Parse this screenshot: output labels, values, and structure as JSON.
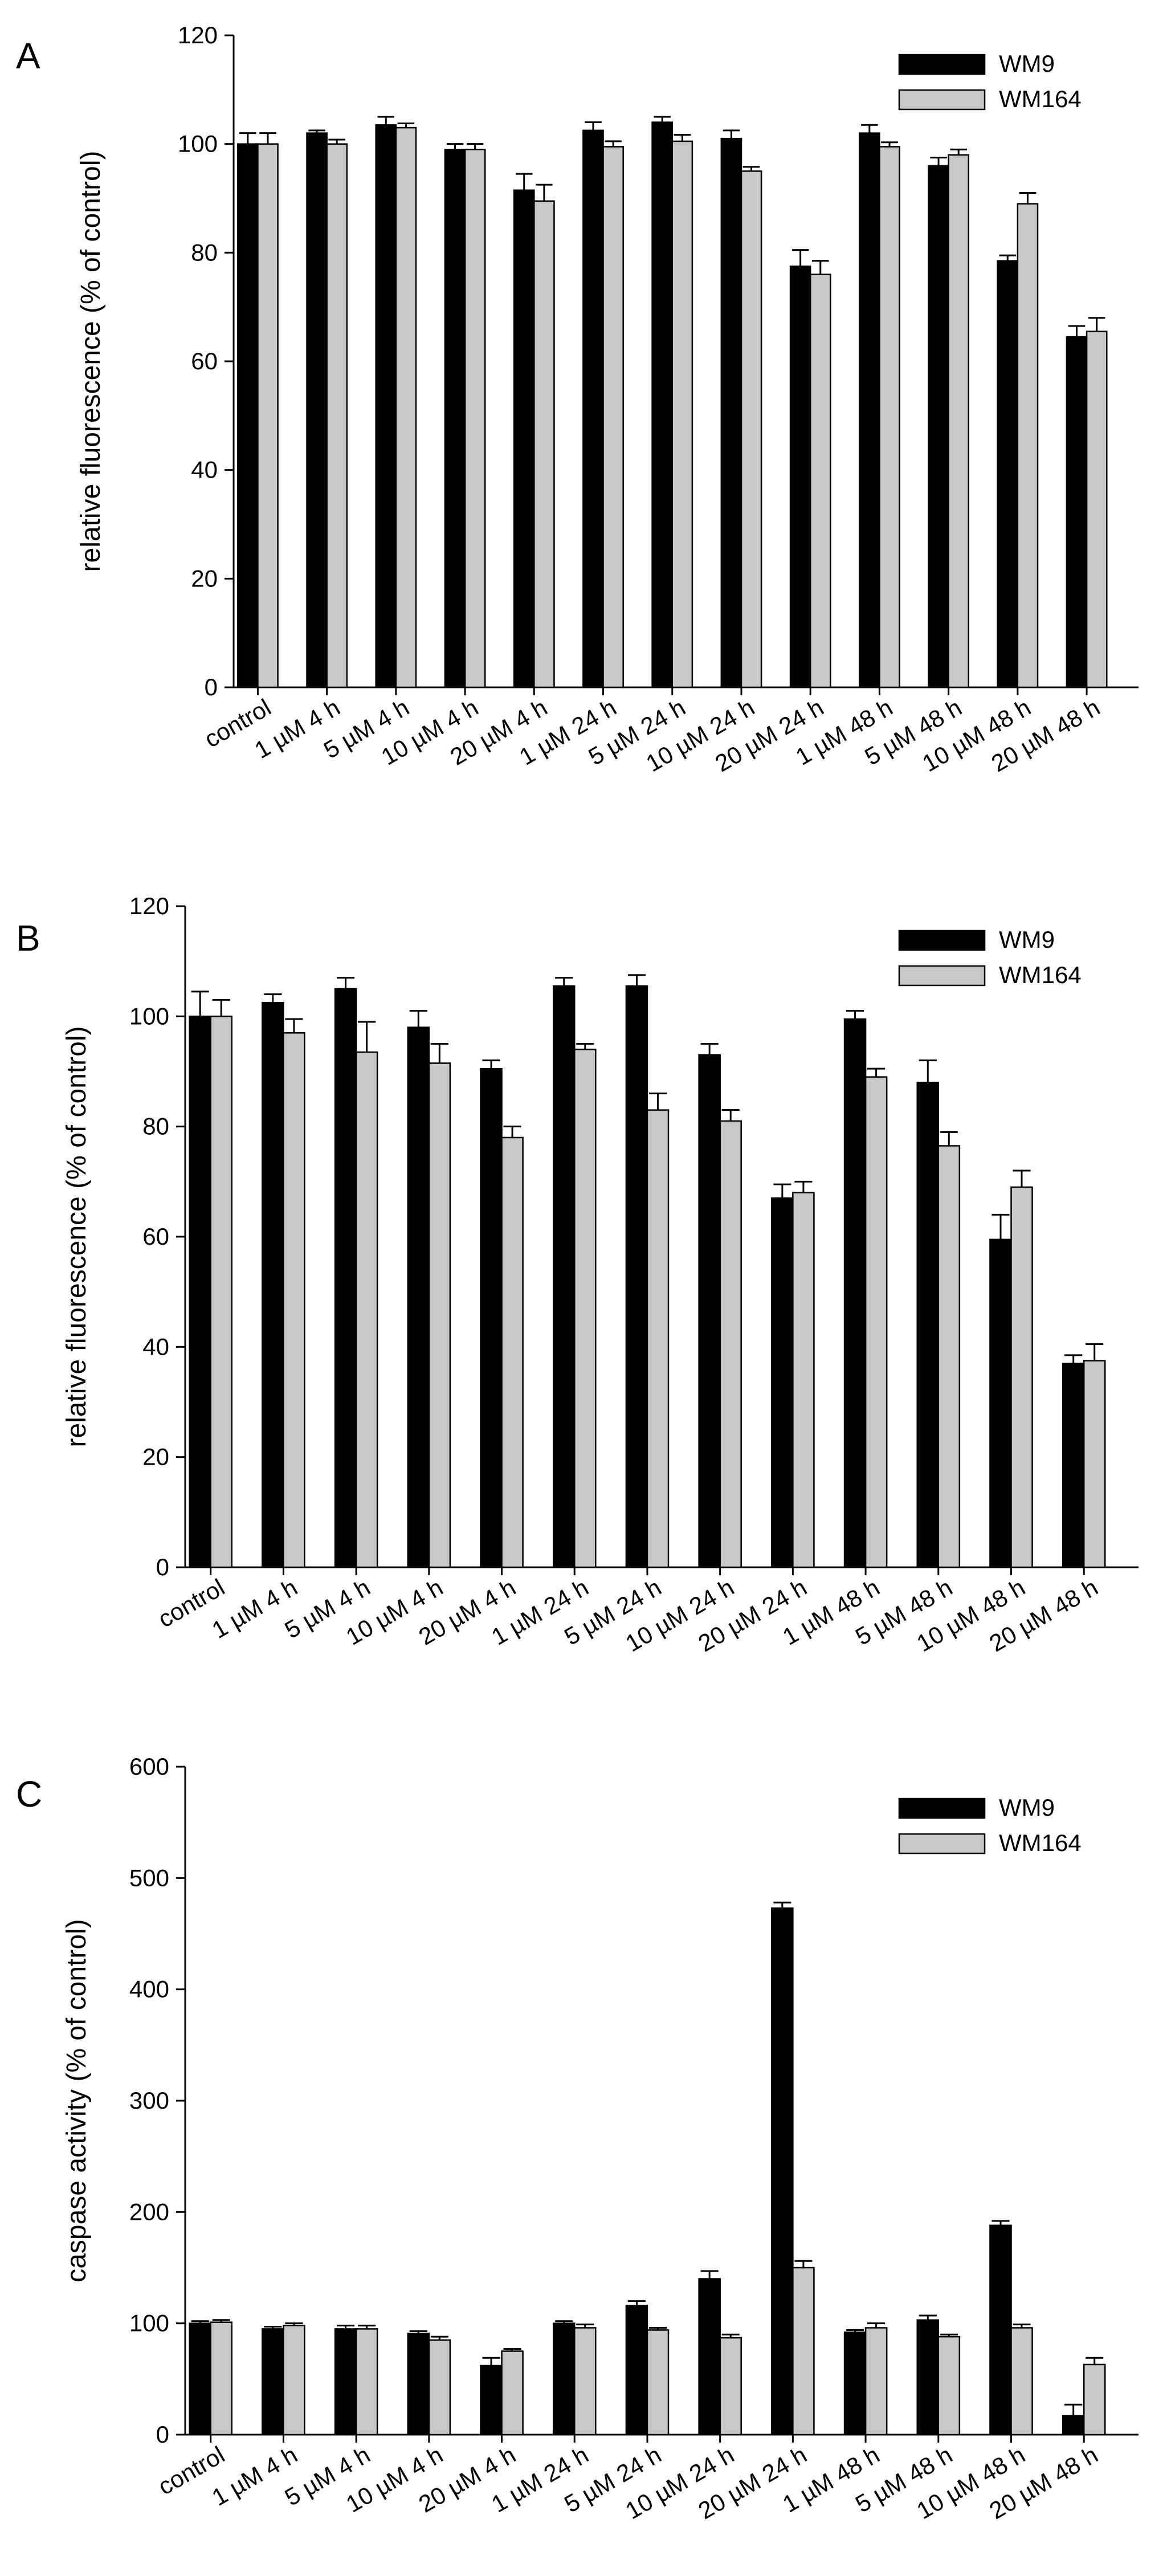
{
  "colors": {
    "wm9": "#000000",
    "wm164": "#c8c8c8",
    "axis": "#000000"
  },
  "chart_data": [
    {
      "type": "bar",
      "panel": "A",
      "ylabel": "relative fluorescence (% of control)",
      "ylim": [
        0,
        120
      ],
      "yticks": [
        0,
        20,
        40,
        60,
        80,
        100,
        120
      ],
      "categories": [
        "control",
        "1 µM 4 h",
        "5 µM 4 h",
        "10 µM 4 h",
        "20 µM 4 h",
        "1 µM 24 h",
        "5 µM 24 h",
        "10 µM 24 h",
        "20 µM 24 h",
        "1 µM 48 h",
        "5 µM 48 h",
        "10 µM 48 h",
        "20 µM 48 h"
      ],
      "legend_position": "top-right",
      "series": [
        {
          "name": "WM9",
          "color": "#000000",
          "values": [
            100,
            102,
            103.5,
            99,
            91.5,
            102.5,
            104,
            101,
            77.5,
            102,
            96,
            78.5,
            64.5
          ],
          "errors": [
            2,
            0.5,
            1.5,
            1,
            3,
            1.5,
            1,
            1.5,
            3,
            1.5,
            1.5,
            1,
            2
          ]
        },
        {
          "name": "WM164",
          "color": "#c8c8c8",
          "values": [
            100,
            100,
            103,
            99,
            89.5,
            99.5,
            100.5,
            95,
            76,
            99.5,
            98,
            89,
            65.5
          ],
          "errors": [
            2,
            0.8,
            0.8,
            1,
            3,
            1,
            1.2,
            0.8,
            2.5,
            0.8,
            1,
            2,
            2.5
          ]
        }
      ]
    },
    {
      "type": "bar",
      "panel": "B",
      "ylabel": "relative fluorescence (% of control)",
      "ylim": [
        0,
        120
      ],
      "yticks": [
        0,
        20,
        40,
        60,
        80,
        100,
        120
      ],
      "categories": [
        "control",
        "1 µM 4 h",
        "5 µM 4 h",
        "10 µM 4 h",
        "20 µM 4 h",
        "1 µM 24 h",
        "5 µM 24 h",
        "10 µM 24 h",
        "20 µM 24 h",
        "1 µM 48 h",
        "5 µM 48 h",
        "10 µM 48 h",
        "20 µM 48 h"
      ],
      "legend_position": "top-right",
      "series": [
        {
          "name": "WM9",
          "color": "#000000",
          "values": [
            100,
            102.5,
            105,
            98,
            90.5,
            105.5,
            105.5,
            93,
            67,
            99.5,
            88,
            59.5,
            37
          ],
          "errors": [
            4.5,
            1.5,
            2,
            3,
            1.5,
            1.5,
            2,
            2,
            2.5,
            1.5,
            4,
            4.5,
            1.5
          ]
        },
        {
          "name": "WM164",
          "color": "#c8c8c8",
          "values": [
            100,
            97,
            93.5,
            91.5,
            78,
            94,
            83,
            81,
            68,
            89,
            76.5,
            69,
            37.5
          ],
          "errors": [
            3,
            2.5,
            5.5,
            3.5,
            2,
            1,
            3,
            2,
            2,
            1.5,
            2.5,
            3,
            3
          ]
        }
      ]
    },
    {
      "type": "bar",
      "panel": "C",
      "ylabel": "caspase activity (% of control)",
      "ylim": [
        0,
        600
      ],
      "yticks": [
        0,
        100,
        200,
        300,
        400,
        500,
        600
      ],
      "categories": [
        "control",
        "1 µM 4 h",
        "5 µM 4 h",
        "10 µM 4 h",
        "20 µM 4 h",
        "1 µM 24 h",
        "5 µM 24 h",
        "10 µM 24 h",
        "20 µM 24 h",
        "1 µM 48 h",
        "5 µM 48 h",
        "10 µM 48 h",
        "20 µM 48 h"
      ],
      "legend_position": "top-right",
      "series": [
        {
          "name": "WM9",
          "color": "#000000",
          "values": [
            100,
            95,
            95,
            91,
            62,
            100,
            116,
            140,
            473,
            92,
            103,
            188,
            17
          ],
          "errors": [
            2,
            2,
            3,
            2,
            7,
            2,
            4,
            7,
            5,
            2,
            4,
            4,
            10
          ]
        },
        {
          "name": "WM164",
          "color": "#c8c8c8",
          "values": [
            101,
            98,
            95,
            85,
            75,
            96,
            94,
            87,
            150,
            96,
            88,
            96,
            63
          ],
          "errors": [
            2,
            2,
            3,
            3,
            2,
            3,
            2,
            3,
            6,
            4,
            2,
            3,
            6
          ]
        }
      ]
    }
  ]
}
